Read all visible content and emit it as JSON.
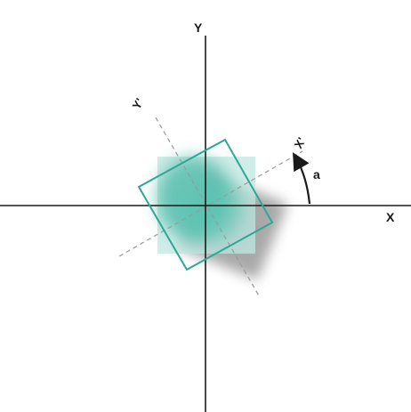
{
  "labels": {
    "x": "X",
    "y": "Y",
    "x_prime": "X'",
    "y_prime": "Y'",
    "angle": "a"
  },
  "colors": {
    "axis": "#1a1a1a",
    "rotated_axis": "#9a9a9a",
    "teal_fill": "#4fbfad",
    "teal_stroke": "#2ea893",
    "original_square_fill": "#bfe7e1",
    "shadow": "#8c8c8c",
    "arrow": "#1a1a1a"
  },
  "rotation": {
    "angle_degrees": 22
  }
}
